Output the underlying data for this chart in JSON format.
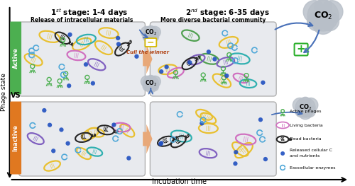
{
  "stage1_title": "1$^{st}$ stage: 1-4 days",
  "stage2_title": "2$^{nd}$ stage: 6-35 days",
  "active_label": "Active",
  "inactive_label": "Inactive",
  "vs_label": "VS",
  "phage_state_label": "Phage state",
  "incubation_label": "Incubation time",
  "active_box_subtitle": "Release of intracellular materials",
  "active_box2_subtitle": "More diverse bacterial community",
  "cull_label": "Cull the winner",
  "legend_items": [
    "Active phages",
    "Living bacteria",
    "Dead bacteria",
    "Released cellular C\nand nutrients",
    "Exocellular enzymes"
  ],
  "active_color": "#4caf50",
  "inactive_color": "#e07820",
  "arrow_orange": "#e8a878",
  "co2_cloud_color": "#b8bfc8",
  "plus_color": "#2db02d",
  "minus_color": "#d4b800",
  "bg_color": "#ffffff",
  "box_bg": "#e8eaee",
  "box_border": "#aaaaaa",
  "bacteria_yellow": "#e8c030",
  "bacteria_pink": "#d070c0",
  "bacteria_teal": "#30b0b0",
  "bacteria_green": "#50a050",
  "bacteria_purple": "#8060c0",
  "bacteria_blue_outline": "#4080d0",
  "dead_bacteria_color": "#252525",
  "dot_color": "#2050c0",
  "enzyme_color": "#50a8d8",
  "arrow_blue": "#4870b8",
  "text_dark": "#1a1a1a"
}
